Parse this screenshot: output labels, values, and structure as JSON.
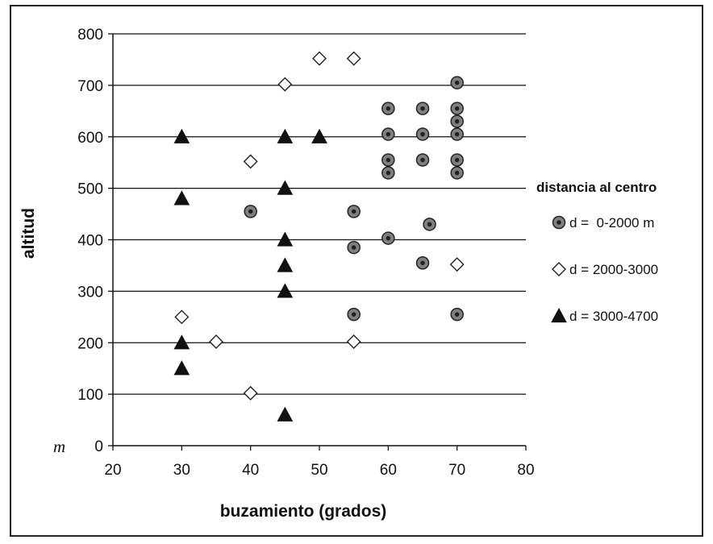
{
  "chart_data": {
    "type": "scatter",
    "title": "",
    "xlabel": "buzamiento (grados)",
    "ylabel": "altitud",
    "yunit": "m",
    "xlim": [
      20,
      80
    ],
    "ylim": [
      0,
      800
    ],
    "xticks": [
      "20",
      "30",
      "40",
      "50",
      "60",
      "70",
      "80"
    ],
    "yticks": [
      "0",
      "100",
      "200",
      "300",
      "400",
      "500",
      "600",
      "700",
      "800"
    ],
    "grid": "horizontal",
    "legend_title": "distancia al centro",
    "legend_position": "right",
    "series": [
      {
        "name": "d =  0-2000 m",
        "marker": "filled-circle",
        "points": [
          [
            70,
            705
          ],
          [
            60,
            655
          ],
          [
            65,
            655
          ],
          [
            70,
            655
          ],
          [
            70,
            630
          ],
          [
            60,
            605
          ],
          [
            65,
            605
          ],
          [
            70,
            605
          ],
          [
            60,
            555
          ],
          [
            65,
            555
          ],
          [
            70,
            555
          ],
          [
            60,
            530
          ],
          [
            70,
            530
          ],
          [
            40,
            455
          ],
          [
            55,
            455
          ],
          [
            66,
            430
          ],
          [
            60,
            403
          ],
          [
            55,
            385
          ],
          [
            65,
            355
          ],
          [
            55,
            255
          ],
          [
            70,
            255
          ]
        ]
      },
      {
        "name": "d = 2000-3000",
        "marker": "open-diamond",
        "points": [
          [
            50,
            752
          ],
          [
            55,
            752
          ],
          [
            45,
            702
          ],
          [
            40,
            552
          ],
          [
            70,
            352
          ],
          [
            30,
            250
          ],
          [
            35,
            202
          ],
          [
            55,
            202
          ],
          [
            40,
            102
          ]
        ]
      },
      {
        "name": "d = 3000-4700",
        "marker": "filled-triangle",
        "points": [
          [
            30,
            600
          ],
          [
            45,
            600
          ],
          [
            50,
            600
          ],
          [
            30,
            480
          ],
          [
            45,
            500
          ],
          [
            45,
            400
          ],
          [
            45,
            350
          ],
          [
            45,
            300
          ],
          [
            30,
            200
          ],
          [
            30,
            150
          ],
          [
            45,
            60
          ]
        ]
      }
    ]
  }
}
